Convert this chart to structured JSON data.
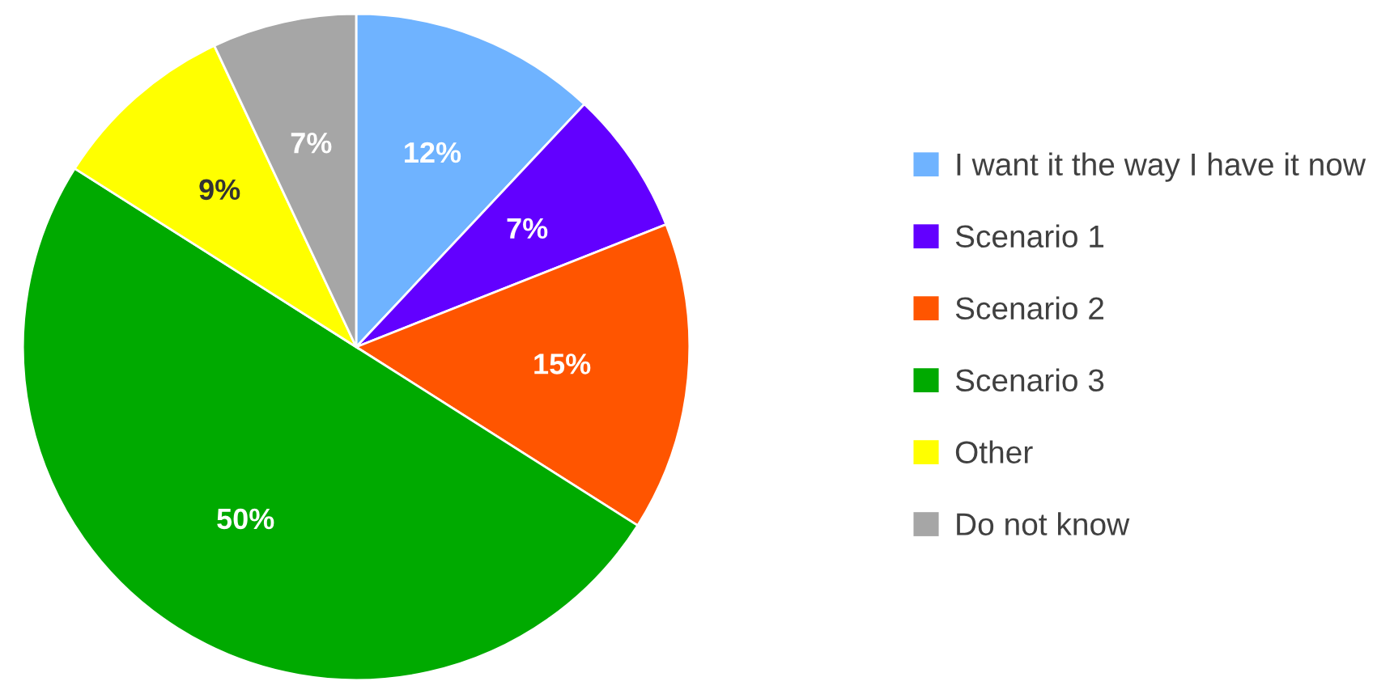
{
  "chart_data": {
    "type": "pie",
    "categories": [
      "I want it the way I have it now",
      "Scenario 1",
      "Scenario 2",
      "Scenario 3",
      "Other",
      "Do not know"
    ],
    "values": [
      12,
      7,
      15,
      50,
      9,
      7
    ],
    "colors": [
      "#6fb3ff",
      "#6200ff",
      "#ff5500",
      "#00aa00",
      "#ffff00",
      "#a6a6a6"
    ],
    "value_labels": [
      "12%",
      "7%",
      "15%",
      "50%",
      "9%",
      "7%"
    ],
    "legend": "right"
  }
}
